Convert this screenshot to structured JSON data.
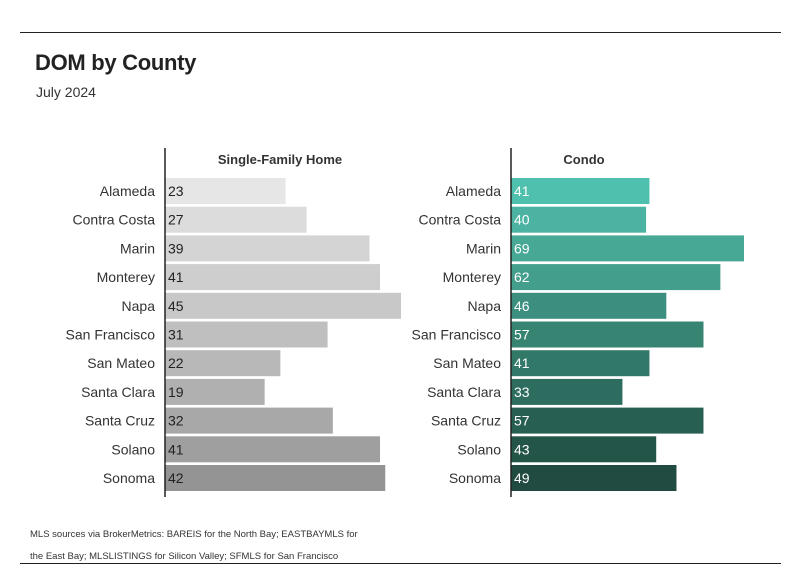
{
  "header": {
    "title": "DOM by County",
    "subtitle": "July 2024"
  },
  "footer": {
    "source": "MLS sources via BrokerMetrics: BAREIS for the North Bay; EASTBAYMLS for the East Bay; MLSLISTINGS for Silicon Valley; SFMLS for San Francisco"
  },
  "chart_data": [
    {
      "type": "bar",
      "orientation": "horizontal",
      "title": "Single-Family Home",
      "categories": [
        "Alameda",
        "Contra Costa",
        "Marin",
        "Monterey",
        "Napa",
        "San Francisco",
        "San Mateo",
        "Santa Clara",
        "Santa Cruz",
        "Solano",
        "Sonoma"
      ],
      "values": [
        23,
        27,
        39,
        41,
        45,
        31,
        22,
        19,
        32,
        41,
        42
      ],
      "xlim": [
        0,
        45
      ],
      "data_labels": true,
      "grid": false,
      "colors": [
        "#e6e6e6",
        "#dcdcdc",
        "#d4d4d4",
        "#cecece",
        "#c8c8c8",
        "#bfbfbf",
        "#b8b8b8",
        "#b0b0b0",
        "#a8a8a8",
        "#9f9f9f",
        "#949494"
      ]
    },
    {
      "type": "bar",
      "orientation": "horizontal",
      "title": "Condo",
      "categories": [
        "Alameda",
        "Contra Costa",
        "Marin",
        "Monterey",
        "Napa",
        "San Francisco",
        "San Mateo",
        "Santa Clara",
        "Santa Cruz",
        "Solano",
        "Sonoma"
      ],
      "values": [
        41,
        40,
        69,
        62,
        46,
        57,
        41,
        33,
        57,
        43,
        49
      ],
      "xlim": [
        0,
        69
      ],
      "data_labels": true,
      "grid": false,
      "colors": [
        "#4fc0ad",
        "#4cb3a2",
        "#47a896",
        "#439e8c",
        "#3c8f7e",
        "#378473",
        "#317868",
        "#2c6d5f",
        "#285f53",
        "#245549",
        "#214a40"
      ]
    }
  ]
}
